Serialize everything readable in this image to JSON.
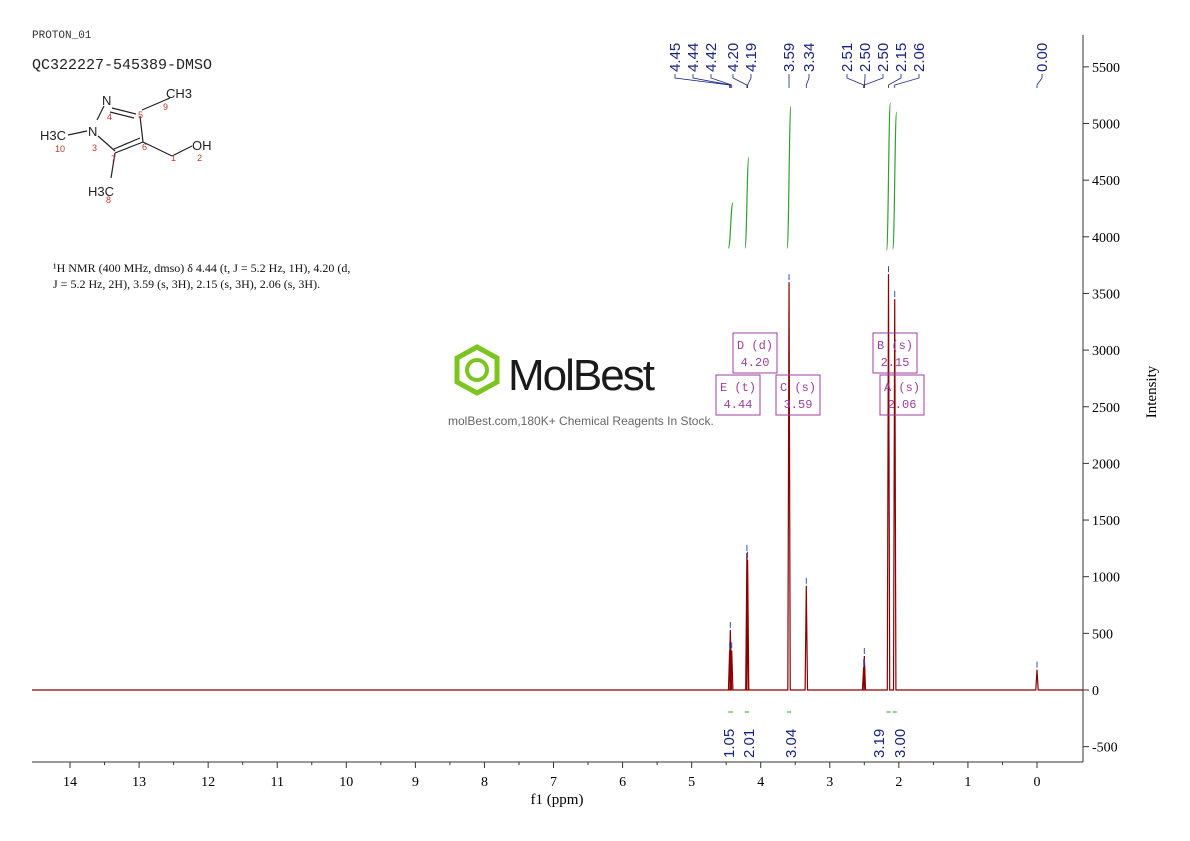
{
  "header": {
    "experiment": "PROTON_01",
    "sample": "QC322227-545389-DMSO"
  },
  "structure": {
    "atoms": [
      "N",
      "CH3",
      "H3C",
      "N",
      "OH",
      "H3C"
    ],
    "numbers": [
      "1",
      "2",
      "3",
      "4",
      "5",
      "6",
      "7",
      "8",
      "9",
      "10"
    ]
  },
  "description": {
    "line1": "¹H NMR (400 MHz, dmso) δ 4.44 (t, J = 5.2 Hz, 1H), 4.20 (d,",
    "line2": "J = 5.2 Hz, 2H), 3.59 (s, 3H), 2.15 (s, 3H), 2.06 (s, 3H)."
  },
  "watermark": {
    "brand": "MolBest",
    "tagline": "molBest.com,180K+ Chemical Reagents In Stock."
  },
  "colors": {
    "spectrum": "#8b0000",
    "integral": "#2e9e2e",
    "labels": "#1a237e",
    "multiplet": "#9c3fa0"
  },
  "chart_data": {
    "type": "line",
    "xlabel": "f1 (ppm)",
    "ylabel": "Intensity",
    "xlim": [
      14.5,
      -0.6
    ],
    "ylim": [
      -650,
      5800
    ],
    "x_reversed": true,
    "x_ticks": [
      14,
      13,
      12,
      11,
      10,
      9,
      8,
      7,
      6,
      5,
      4,
      3,
      2,
      1,
      0
    ],
    "y_ticks": [
      -500,
      0,
      500,
      1000,
      1500,
      2000,
      2500,
      3000,
      3500,
      4000,
      4500,
      5000,
      5500
    ],
    "peaks": [
      {
        "ppm": 4.45,
        "height": 350
      },
      {
        "ppm": 4.44,
        "height": 530
      },
      {
        "ppm": 4.42,
        "height": 350
      },
      {
        "ppm": 4.2,
        "height": 1210
      },
      {
        "ppm": 4.19,
        "height": 1150
      },
      {
        "ppm": 3.59,
        "height": 3600
      },
      {
        "ppm": 3.34,
        "height": 920
      },
      {
        "ppm": 2.51,
        "height": 200
      },
      {
        "ppm": 2.5,
        "height": 300
      },
      {
        "ppm": 2.5,
        "height": 200
      },
      {
        "ppm": 2.15,
        "height": 3670
      },
      {
        "ppm": 2.06,
        "height": 3450
      },
      {
        "ppm": 0.0,
        "height": 180
      }
    ],
    "peak_labels": [
      "4.45",
      "4.44",
      "4.42",
      "4.20",
      "4.19",
      "3.59",
      "3.34",
      "2.51",
      "2.50",
      "2.50",
      "2.15",
      "2.06",
      "0.00"
    ],
    "multiplets": [
      {
        "id": "D",
        "mult": "d",
        "ppm": "4.20"
      },
      {
        "id": "E",
        "mult": "t",
        "ppm": "4.44"
      },
      {
        "id": "C",
        "mult": "s",
        "ppm": "3.59"
      },
      {
        "id": "B",
        "mult": "s",
        "ppm": "2.15"
      },
      {
        "id": "A",
        "mult": "s",
        "ppm": "2.06"
      }
    ],
    "integrals": [
      {
        "from": 4.47,
        "to": 4.4,
        "value": "1.05"
      },
      {
        "from": 4.23,
        "to": 4.17,
        "value": "2.01"
      },
      {
        "from": 3.62,
        "to": 3.56,
        "value": "3.04"
      },
      {
        "from": 2.18,
        "to": 2.12,
        "value": "3.19"
      },
      {
        "from": 2.09,
        "to": 2.03,
        "value": "3.00"
      }
    ]
  }
}
